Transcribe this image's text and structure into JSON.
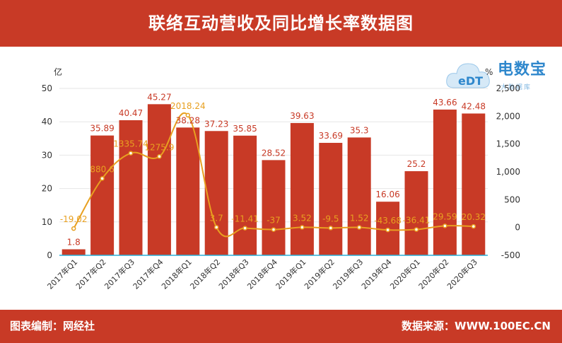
{
  "header": {
    "title": "联络互动营收及同比增长率数据图"
  },
  "footer": {
    "editor": "图表编制：网经社",
    "source": "数据来源：WWW.100EC.CN"
  },
  "logo": {
    "brand": "电数宝",
    "sub": "大数据库",
    "mark": "eDT"
  },
  "colors": {
    "bar": "#c83a26",
    "line": "#e8a020",
    "header": "#c83a26"
  },
  "chart_data": {
    "type": "bar",
    "categories": [
      "2017年Q1",
      "2017年Q2",
      "2017年Q3",
      "2017年Q4",
      "2018年Q1",
      "2018年Q2",
      "2018年Q3",
      "2018年Q4",
      "2019年Q1",
      "2019年Q2",
      "2019年Q3",
      "2019年Q4",
      "2020年Q1",
      "2020年Q2",
      "2020年Q3"
    ],
    "left_axis": {
      "unit": "亿",
      "ticks": [
        "0",
        "10",
        "20",
        "30",
        "40",
        "50"
      ],
      "ylim": [
        0,
        50
      ]
    },
    "right_axis": {
      "unit": "%",
      "ticks": [
        "-500",
        "0",
        "500",
        "1,000",
        "1,500",
        "2,000",
        "2,500"
      ],
      "ylim": [
        -500,
        2500
      ]
    },
    "series": [
      {
        "type": "bar",
        "axis": "left",
        "values": [
          1.8,
          35.89,
          40.47,
          45.27,
          38.28,
          37.23,
          35.85,
          28.52,
          39.63,
          33.69,
          35.3,
          16.06,
          25.2,
          43.66,
          42.48
        ],
        "labels": [
          "1.8",
          "35.89",
          "40.47",
          "45.27",
          "38.28",
          "37.23",
          "35.85",
          "28.52",
          "39.63",
          "33.69",
          "35.3",
          "16.06",
          "25.2",
          "43.66",
          "42.48"
        ]
      },
      {
        "type": "line",
        "axis": "right",
        "values": [
          -19.02,
          880.6,
          1335.74,
          1275.9,
          2018.24,
          3.7,
          -11.41,
          -37,
          3.52,
          -9.5,
          1.52,
          -43.68,
          -36.41,
          29.59,
          20.32
        ],
        "labels": [
          "-19.02",
          "880.6",
          "1335.74",
          "1275.9",
          "2018.24",
          "3.7",
          "-11.41",
          "-37",
          "3.52",
          "-9.5",
          "1.52",
          "-43.68",
          "-36.41",
          "29.59",
          "20.32"
        ]
      }
    ],
    "grid": true,
    "legend": "none"
  }
}
